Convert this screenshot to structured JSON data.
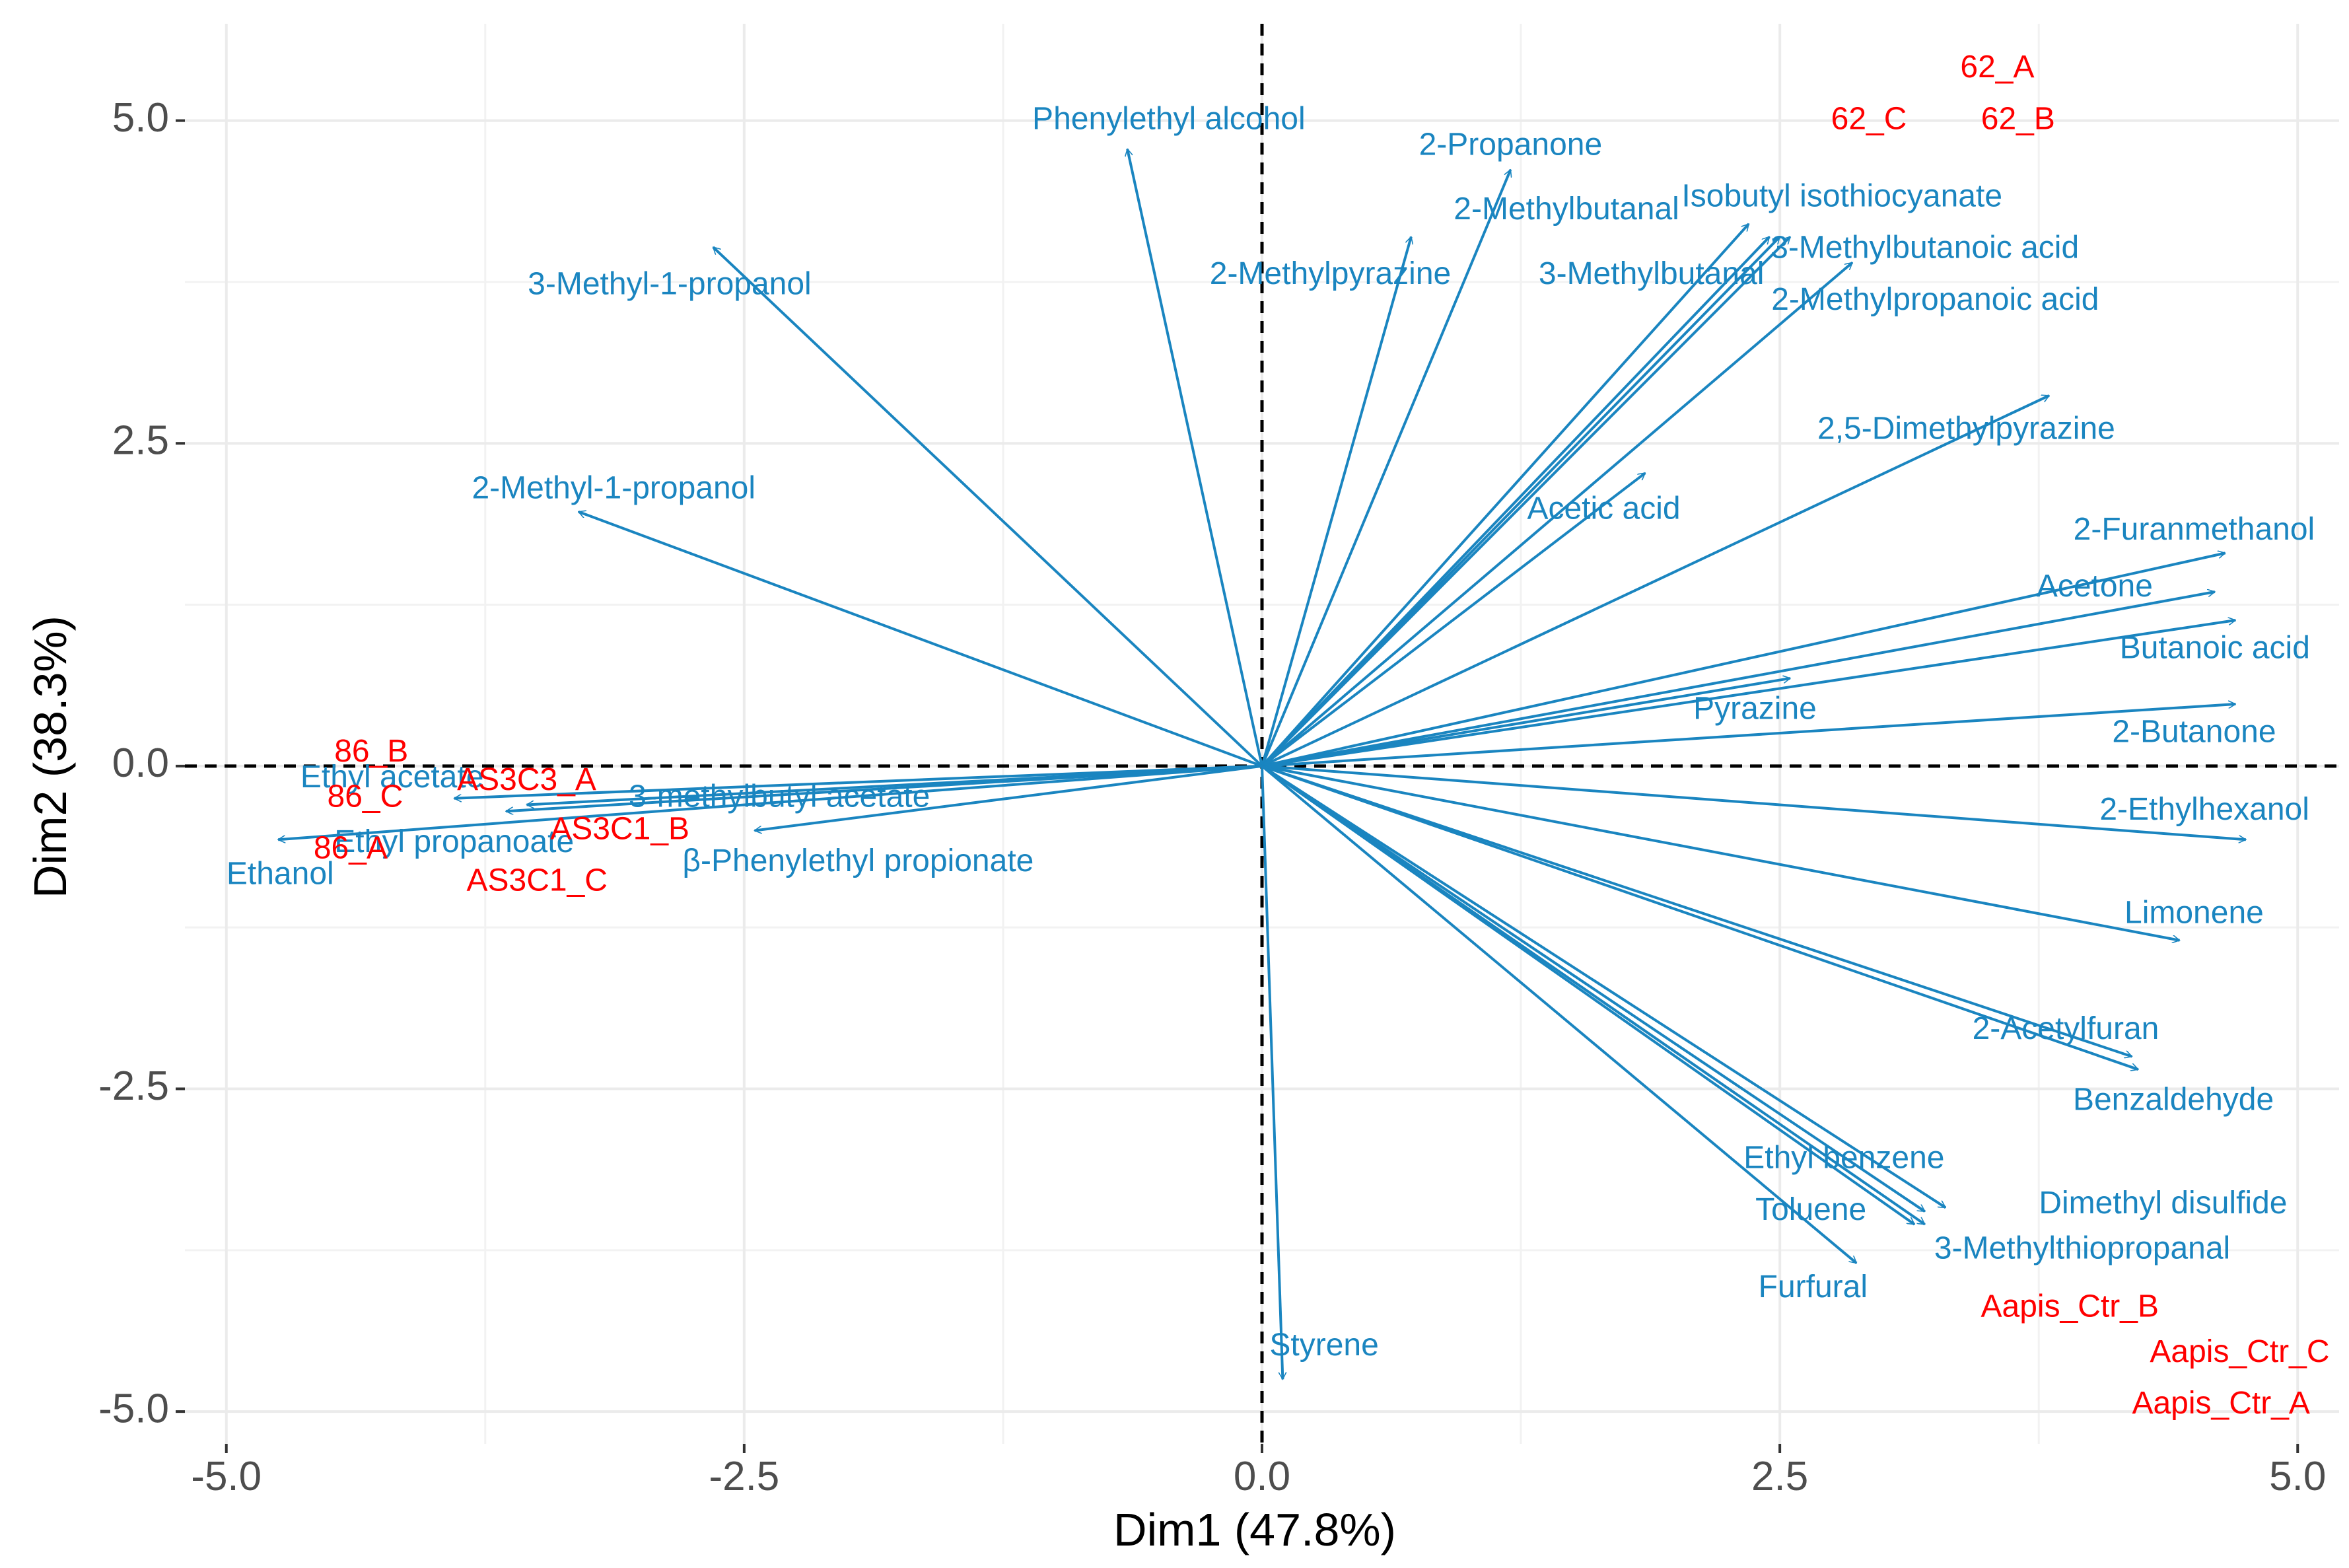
{
  "chart_data": {
    "type": "scatter",
    "subtype": "pca-biplot",
    "xlabel": "Dim1 (47.8%)",
    "ylabel": "Dim2 (38.3%)",
    "xlim": [
      -5.2,
      5.2
    ],
    "ylim": [
      -5.25,
      5.75
    ],
    "x_ticks": [
      -5,
      -2.5,
      0,
      2.5,
      5
    ],
    "x_tick_labels": [
      "-5.0",
      "-2.5",
      "0.0",
      "2.5",
      "5.0"
    ],
    "y_ticks": [
      -5,
      -2.5,
      0,
      2.5,
      5
    ],
    "y_tick_labels": [
      "-5.0",
      "-2.5",
      "0.0",
      "2.5",
      "5.0"
    ],
    "grid": true,
    "reference_lines": "dashed lines at x = 0 and y = 0",
    "colors": {
      "variables": "#1a85c0",
      "individuals": "#ff0000"
    },
    "variables": [
      {
        "name": "Phenylethyl alcohol",
        "x": -0.65,
        "y": 4.78,
        "lx": -0.45,
        "ly": 5.0
      },
      {
        "name": "2-Propanone",
        "x": 1.2,
        "y": 4.62,
        "lx": 1.2,
        "ly": 4.8
      },
      {
        "name": "3-Methyl-1-propanol",
        "x": -2.65,
        "y": 4.02,
        "lx": -2.86,
        "ly": 3.72
      },
      {
        "name": "2-Methylpyrazine",
        "x": 0.72,
        "y": 4.1,
        "lx": 0.33,
        "ly": 3.8
      },
      {
        "name": "2-Methylbutanal",
        "x": 2.35,
        "y": 4.2,
        "lx": 1.47,
        "ly": 4.3
      },
      {
        "name": "3-Methylbutanal",
        "x": 2.45,
        "y": 4.1,
        "lx": 1.88,
        "ly": 3.8
      },
      {
        "name": "Isobutyl isothiocyanate",
        "x": 2.5,
        "y": 4.1,
        "lx": 2.8,
        "ly": 4.4
      },
      {
        "name": "3-Methylbutanoic acid",
        "x": 2.55,
        "y": 4.1,
        "lx": 3.2,
        "ly": 4.0
      },
      {
        "name": "2-Methylpropanoic acid",
        "x": 2.85,
        "y": 3.9,
        "lx": 3.25,
        "ly": 3.6
      },
      {
        "name": "2,5-Dimethylpyrazine",
        "x": 3.8,
        "y": 2.87,
        "lx": 3.4,
        "ly": 2.6
      },
      {
        "name": "Acetic acid",
        "x": 1.85,
        "y": 2.27,
        "lx": 1.65,
        "ly": 1.98
      },
      {
        "name": "2-Methyl-1-propanol",
        "x": -3.3,
        "y": 1.97,
        "lx": -3.13,
        "ly": 2.14
      },
      {
        "name": "2-Furanmethanol",
        "x": 4.65,
        "y": 1.65,
        "lx": 4.5,
        "ly": 1.82
      },
      {
        "name": "Acetone",
        "x": 4.6,
        "y": 1.35,
        "lx": 4.02,
        "ly": 1.38
      },
      {
        "name": "Butanoic acid",
        "x": 4.7,
        "y": 1.13,
        "lx": 4.6,
        "ly": 0.9
      },
      {
        "name": "Pyrazine",
        "x": 2.55,
        "y": 0.68,
        "lx": 2.38,
        "ly": 0.43
      },
      {
        "name": "2-Butanone",
        "x": 4.7,
        "y": 0.48,
        "lx": 4.5,
        "ly": 0.25
      },
      {
        "name": "2-Ethylhexanol",
        "x": 4.75,
        "y": -0.57,
        "lx": 4.55,
        "ly": -0.35
      },
      {
        "name": "Limonene",
        "x": 4.43,
        "y": -1.35,
        "lx": 4.5,
        "ly": -1.15
      },
      {
        "name": "2-Acetylfuran",
        "x": 4.2,
        "y": -2.25,
        "lx": 3.88,
        "ly": -2.05
      },
      {
        "name": "Benzaldehyde",
        "x": 4.23,
        "y": -2.35,
        "lx": 4.4,
        "ly": -2.6
      },
      {
        "name": "Ethyl benzene",
        "x": 3.2,
        "y": -3.45,
        "lx": 2.81,
        "ly": -3.05
      },
      {
        "name": "Dimethyl disulfide",
        "x": 3.3,
        "y": -3.42,
        "lx": 4.35,
        "ly": -3.4
      },
      {
        "name": "Toluene",
        "x": 3.15,
        "y": -3.55,
        "lx": 2.65,
        "ly": -3.45
      },
      {
        "name": "3-Methylthiopropanal",
        "x": 3.2,
        "y": -3.55,
        "lx": 3.96,
        "ly": -3.75
      },
      {
        "name": "Furfural",
        "x": 2.87,
        "y": -3.85,
        "lx": 2.66,
        "ly": -4.05
      },
      {
        "name": "Styrene",
        "x": 0.1,
        "y": -4.75,
        "lx": 0.3,
        "ly": -4.5
      },
      {
        "name": "Ethyl acetate",
        "x": -3.9,
        "y": -0.25,
        "lx": -4.2,
        "ly": -0.1
      },
      {
        "name": "3-methylbutyl acetate",
        "x": -3.55,
        "y": -0.3,
        "lx": -2.33,
        "ly": -0.25
      },
      {
        "name": "Ethyl propanoate",
        "x": -3.65,
        "y": -0.35,
        "lx": -3.9,
        "ly": -0.6
      },
      {
        "name": "Ethanol",
        "x": -4.75,
        "y": -0.57,
        "lx": -4.74,
        "ly": -0.85
      },
      {
        "name": "β-Phenylethyl propionate",
        "x": -2.45,
        "y": -0.5,
        "lx": -1.95,
        "ly": -0.75
      }
    ],
    "individuals": [
      {
        "name": "62_A",
        "x": 3.55,
        "y": 5.4
      },
      {
        "name": "62_C",
        "x": 2.93,
        "y": 5.0
      },
      {
        "name": "62_B",
        "x": 3.65,
        "y": 5.0
      },
      {
        "name": "86_B",
        "x": -4.3,
        "y": 0.1
      },
      {
        "name": "86_C",
        "x": -4.33,
        "y": -0.25
      },
      {
        "name": "86_A",
        "x": -4.4,
        "y": -0.65
      },
      {
        "name": "AS3C3_A",
        "x": -3.55,
        "y": -0.12
      },
      {
        "name": "AS3C1_B",
        "x": -3.1,
        "y": -0.5
      },
      {
        "name": "AS3C1_C",
        "x": -3.5,
        "y": -0.9
      },
      {
        "name": "Aapis_Ctr_B",
        "x": 3.9,
        "y": -4.2
      },
      {
        "name": "Aapis_Ctr_C",
        "x": 4.72,
        "y": -4.55
      },
      {
        "name": "Aapis_Ctr_A",
        "x": 4.63,
        "y": -4.95
      }
    ]
  }
}
